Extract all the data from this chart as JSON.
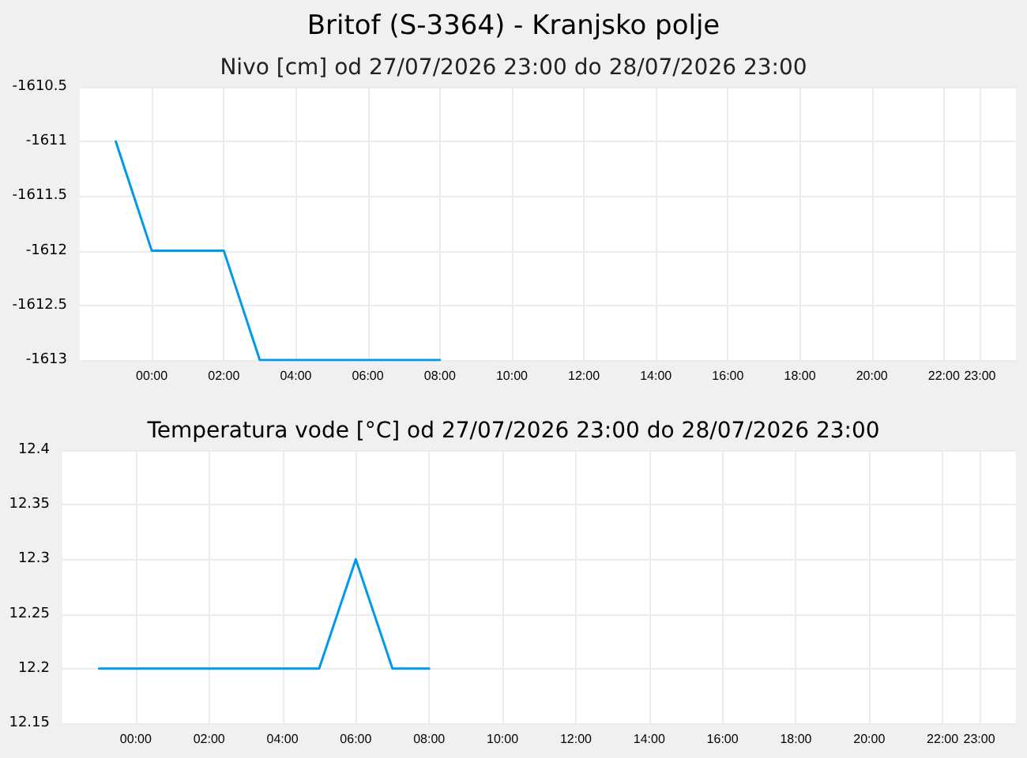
{
  "chart_data": [
    {
      "type": "line",
      "title": "Britof (S-3364) - Kranjsko polje",
      "subtitle": "Nivo [cm] od 27/07/2026 23:00 do 28/07/2026 23:00",
      "x": [
        "2026-07-27T23:00",
        "2026-07-28T00:00",
        "2026-07-28T01:00",
        "2026-07-28T02:00",
        "2026-07-28T03:00",
        "2026-07-28T04:00",
        "2026-07-28T05:00",
        "2026-07-28T06:00",
        "2026-07-28T07:00",
        "2026-07-28T08:00"
      ],
      "series": [
        {
          "color": "#0099ee",
          "values": [
            -1611,
            -1612,
            -1612,
            -1612,
            -1613,
            -1613,
            -1613,
            -1613,
            -1613,
            -1613
          ]
        }
      ],
      "xlim": [
        "2026-07-27T22:00",
        "2026-07-29T00:00"
      ],
      "xticks": [
        {
          "value": "2026-07-28T00:00",
          "label": "00:00"
        },
        {
          "value": "2026-07-28T02:00",
          "label": "02:00"
        },
        {
          "value": "2026-07-28T04:00",
          "label": "04:00"
        },
        {
          "value": "2026-07-28T06:00",
          "label": "06:00"
        },
        {
          "value": "2026-07-28T08:00",
          "label": "08:00"
        },
        {
          "value": "2026-07-28T10:00",
          "label": "10:00"
        },
        {
          "value": "2026-07-28T12:00",
          "label": "12:00"
        },
        {
          "value": "2026-07-28T14:00",
          "label": "14:00"
        },
        {
          "value": "2026-07-28T16:00",
          "label": "16:00"
        },
        {
          "value": "2026-07-28T18:00",
          "label": "18:00"
        },
        {
          "value": "2026-07-28T20:00",
          "label": "20:00"
        },
        {
          "value": "2026-07-28T22:00",
          "label": "22:00"
        },
        {
          "value": "2026-07-28T23:00",
          "label": "23:00"
        }
      ],
      "ylim": [
        -1613,
        -1610.5
      ],
      "yticks": [
        -1613,
        -1612.5,
        -1612,
        -1611.5,
        -1611,
        -1610.5
      ],
      "grid": true,
      "marker": "none",
      "line_style": "solid"
    },
    {
      "type": "line",
      "title": "Temperatura vode [°C] od 27/07/2026 23:00 do 28/07/2026 23:00",
      "x": [
        "2026-07-27T23:00",
        "2026-07-28T00:00",
        "2026-07-28T01:00",
        "2026-07-28T02:00",
        "2026-07-28T03:00",
        "2026-07-28T04:00",
        "2026-07-28T05:00",
        "2026-07-28T06:00",
        "2026-07-28T07:00",
        "2026-07-28T08:00"
      ],
      "series": [
        {
          "color": "#0099ee",
          "values": [
            12.2,
            12.2,
            12.2,
            12.2,
            12.2,
            12.2,
            12.2,
            12.3,
            12.2,
            12.2
          ]
        }
      ],
      "xlim": [
        "2026-07-27T22:00",
        "2026-07-29T00:00"
      ],
      "xticks": [
        {
          "value": "2026-07-28T00:00",
          "label": "00:00"
        },
        {
          "value": "2026-07-28T02:00",
          "label": "02:00"
        },
        {
          "value": "2026-07-28T04:00",
          "label": "04:00"
        },
        {
          "value": "2026-07-28T06:00",
          "label": "06:00"
        },
        {
          "value": "2026-07-28T08:00",
          "label": "08:00"
        },
        {
          "value": "2026-07-28T10:00",
          "label": "10:00"
        },
        {
          "value": "2026-07-28T12:00",
          "label": "12:00"
        },
        {
          "value": "2026-07-28T14:00",
          "label": "14:00"
        },
        {
          "value": "2026-07-28T16:00",
          "label": "16:00"
        },
        {
          "value": "2026-07-28T18:00",
          "label": "18:00"
        },
        {
          "value": "2026-07-28T20:00",
          "label": "20:00"
        },
        {
          "value": "2026-07-28T22:00",
          "label": "22:00"
        },
        {
          "value": "2026-07-28T23:00",
          "label": "23:00"
        }
      ],
      "ylim": [
        12.15,
        12.4
      ],
      "yticks": [
        12.15,
        12.2,
        12.25,
        12.3,
        12.35,
        12.4
      ],
      "grid": true,
      "marker": "none",
      "line_style": "solid"
    }
  ]
}
